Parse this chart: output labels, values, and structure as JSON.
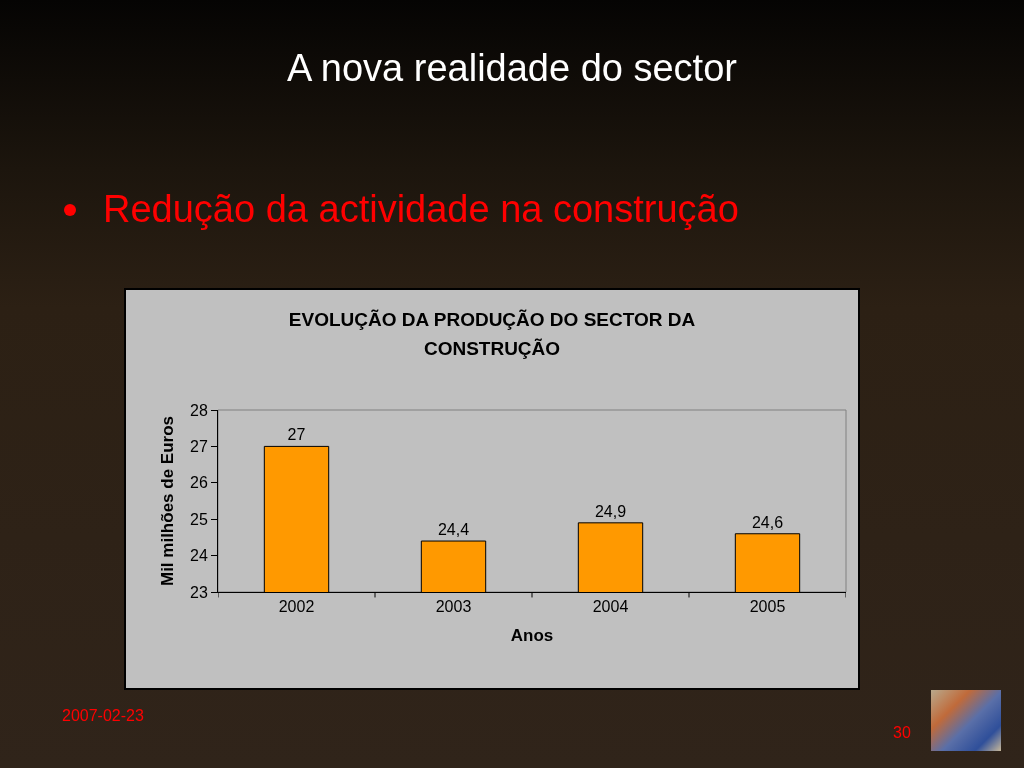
{
  "chart_data": {
    "type": "bar",
    "title": "A nova realidade do sector",
    "subtitle": "Redução da actividade na construção",
    "annotations": [
      "EVOLUÇÃO DA PRODUÇÃO DO SECTOR DA CONSTRUÇÃO",
      "2007-02-23",
      "30"
    ],
    "xlabel": "Anos",
    "ylabel": "Mil milhões de Euros",
    "categories": [
      "2002",
      "2003",
      "2004",
      "2005"
    ],
    "values": [
      27,
      24.4,
      24.9,
      24.6
    ],
    "value_labels": [
      "27",
      "24,4",
      "24,9",
      "24,6"
    ],
    "color": "#ff9900",
    "ylim": [
      23,
      28
    ],
    "yticks": [
      23,
      24,
      25,
      26,
      27,
      28
    ]
  }
}
